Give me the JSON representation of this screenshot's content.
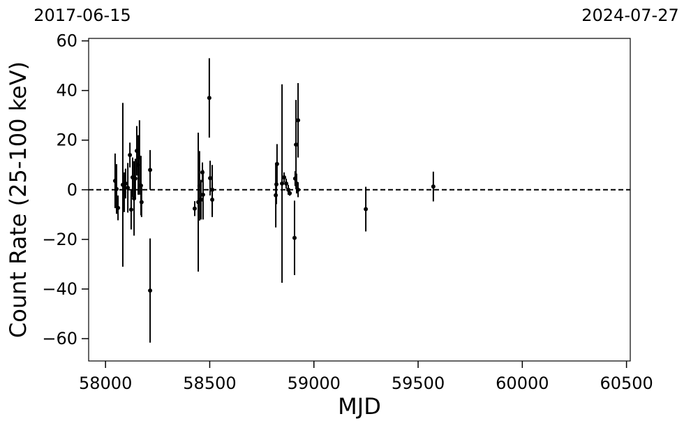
{
  "chart_data": {
    "type": "errorbar-scatter",
    "xlabel": "MJD",
    "ylabel": "Count Rate (25-100 keV)",
    "top_labels": [
      {
        "value": 57919,
        "label": "2017-06-15"
      },
      {
        "value": 60518,
        "label": "2024-07-27"
      }
    ],
    "xlim": [
      57919,
      60518
    ],
    "ylim": [
      -69,
      61
    ],
    "xticks": [
      58000,
      58500,
      59000,
      59500,
      60000,
      60500
    ],
    "yticks": [
      {
        "value": -60,
        "label": "−60"
      },
      {
        "value": -40,
        "label": "−40"
      },
      {
        "value": -20,
        "label": "−20"
      },
      0,
      20,
      40,
      60
    ],
    "hline": 0,
    "color": "#000000",
    "x": [
      58046,
      58053,
      58060,
      58083,
      58090,
      58096,
      58107,
      58117,
      58123,
      58130,
      58137,
      58143,
      58150,
      58157,
      58163,
      58170,
      58173,
      58214,
      58214,
      58428,
      58445,
      58451,
      58458,
      58465,
      58468,
      58498,
      58502,
      58512,
      58512,
      58817,
      58820,
      58823,
      58847,
      58857,
      58867,
      58877,
      58884,
      58907,
      58910,
      58914,
      58917,
      58924,
      58924,
      59249,
      59573
    ],
    "values": [
      3.6,
      0.3,
      -7.3,
      2,
      -1,
      2.5,
      0.8,
      14,
      -8,
      5,
      -3.5,
      4.5,
      15.7,
      10,
      13,
      1.7,
      -5,
      8,
      -40.6,
      -7.6,
      -5,
      1.6,
      -4,
      7,
      -2,
      37,
      4.7,
      0,
      -4,
      -2.2,
      2.2,
      10.4,
      2.5,
      5,
      2.5,
      0,
      -1.4,
      -19.4,
      4.5,
      18.2,
      2.5,
      0,
      28,
      -7.8,
      1.3
    ],
    "errors": [
      11,
      10,
      5,
      33,
      8,
      6,
      10,
      5,
      8,
      8,
      15,
      8,
      10,
      12,
      15,
      12,
      6,
      8,
      21,
      3,
      28,
      14,
      8,
      4,
      10,
      16,
      7,
      10,
      7,
      13,
      8,
      8,
      40,
      2,
      2,
      2,
      1,
      15,
      3,
      18,
      4,
      3,
      15,
      9,
      6
    ]
  }
}
